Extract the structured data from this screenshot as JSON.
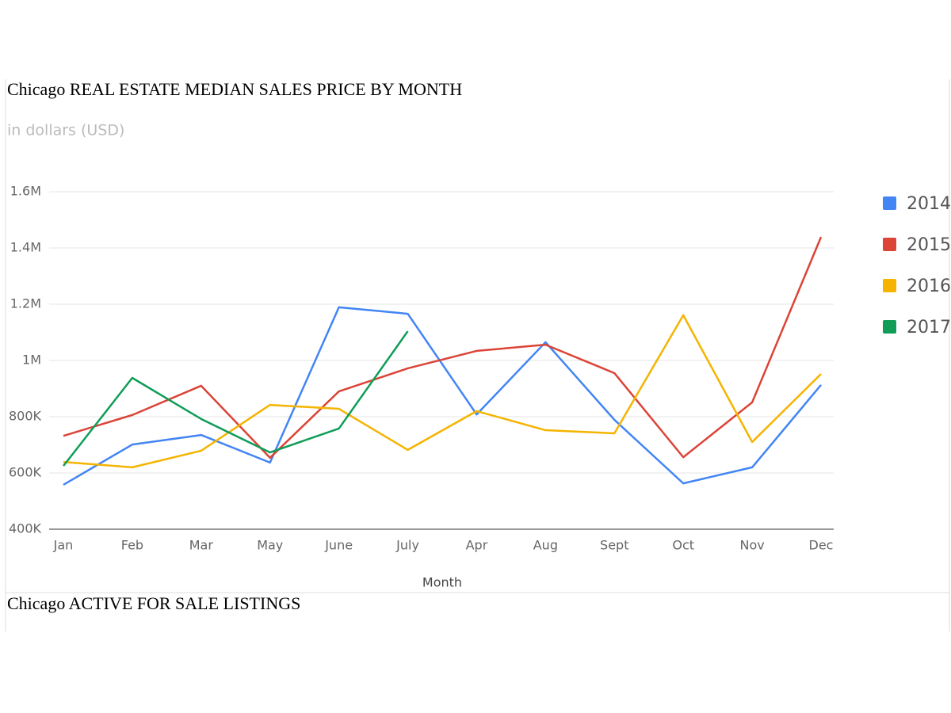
{
  "chart_data": {
    "type": "line",
    "title": "Chicago REAL ESTATE MEDIAN SALES PRICE BY MONTH",
    "subtitle": "in dollars (USD)",
    "x_label": "Month",
    "categories": [
      "Jan",
      "Feb",
      "Mar",
      "May",
      "June",
      "July",
      "Apr",
      "Aug",
      "Sept",
      "Oct",
      "Nov",
      "Dec"
    ],
    "series": [
      {
        "name": "2014",
        "color": "#4285f4",
        "values": [
          558000,
          701000,
          735000,
          637000,
          1189000,
          1166000,
          808000,
          1065000,
          789000,
          563000,
          620000,
          913000
        ]
      },
      {
        "name": "2015",
        "color": "#db4437",
        "values": [
          732000,
          806000,
          910000,
          654000,
          890000,
          972000,
          1034000,
          1056000,
          955000,
          656000,
          851000,
          1439000
        ]
      },
      {
        "name": "2016",
        "color": "#f4b400",
        "values": [
          639000,
          620000,
          679000,
          842000,
          828000,
          682000,
          820000,
          752000,
          741000,
          1161000,
          710000,
          952000
        ]
      },
      {
        "name": "2017",
        "color": "#0f9d58",
        "values": [
          625000,
          938000,
          792000,
          673000,
          758000,
          1104000,
          null,
          null,
          null,
          null,
          null,
          null
        ]
      }
    ],
    "ylim": [
      400000,
      1600000
    ],
    "yticks": [
      {
        "value": 400000,
        "label": "400K"
      },
      {
        "value": 600000,
        "label": "600K"
      },
      {
        "value": 800000,
        "label": "800K"
      },
      {
        "value": 1000000,
        "label": "1M"
      },
      {
        "value": 1200000,
        "label": "1.2M"
      },
      {
        "value": 1400000,
        "label": "1.4M"
      },
      {
        "value": 1600000,
        "label": "1.6M"
      }
    ],
    "grid": true,
    "legend": "right"
  },
  "next_section": {
    "title": "Chicago ACTIVE FOR SALE LISTINGS"
  }
}
